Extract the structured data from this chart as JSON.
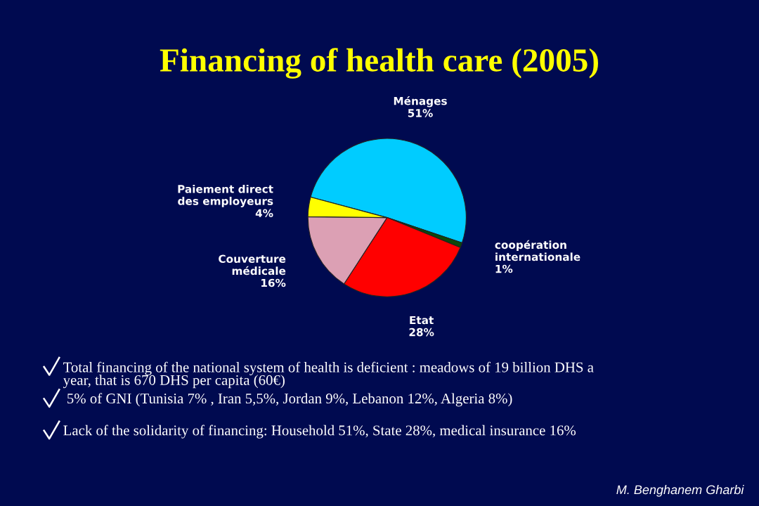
{
  "chart_data": {
    "type": "pie",
    "title": "Financing of health care (2005)",
    "categories": [
      "Ménages",
      "coopération\ninternationale",
      "Etat",
      "Couverture\nmédicale",
      "Paiement direct\ndes employeurs"
    ],
    "values": [
      51,
      1,
      28,
      16,
      4
    ],
    "value_labels": [
      "51%",
      "1%",
      "28%",
      "16%",
      "4%"
    ],
    "colors": [
      "#00ccff",
      "#0a4a0a",
      "#ff0000",
      "#dca0b4",
      "#ffff00"
    ],
    "annotations": [
      "Total financing of the national system of health is deficient : meadows of 19 billion DHS a\nyear, that is 670 DHS per capita (60€)",
      " 5% of GNI (Tunisia 7% , Iran 5,5%, Jordan 9%, Lebanon 12%, Algeria 8%)",
      "Lack of the solidarity of financing: Household 51%, State 28%, medical insurance 16%",
      "M. Benghanem Gharbi"
    ]
  }
}
